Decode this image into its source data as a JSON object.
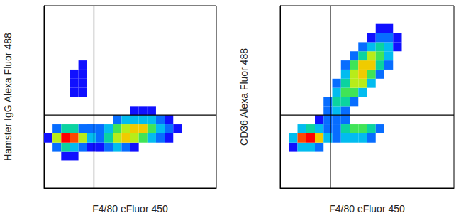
{
  "chart_data": [
    {
      "type": "heatmap",
      "x_label": "F4/80 eFluor 450",
      "y_label": "Hamster IgG Alexa Fluor 488",
      "xlim": [
        0,
        100
      ],
      "ylim": [
        0,
        100
      ],
      "tick_labels": false,
      "cell_size": 5,
      "gate": {
        "x": 29,
        "y": 40
      },
      "cells": [
        [
          10,
          15,
          1
        ],
        [
          15,
          15,
          1
        ],
        [
          5,
          20,
          2
        ],
        [
          10,
          20,
          4
        ],
        [
          15,
          20,
          3
        ],
        [
          20,
          20,
          2
        ],
        [
          25,
          20,
          1
        ],
        [
          30,
          20,
          1
        ],
        [
          35,
          20,
          2
        ],
        [
          40,
          20,
          3
        ],
        [
          45,
          20,
          2
        ],
        [
          50,
          20,
          1
        ],
        [
          0,
          25,
          1
        ],
        [
          5,
          25,
          6
        ],
        [
          10,
          25,
          10
        ],
        [
          15,
          25,
          9
        ],
        [
          20,
          25,
          6
        ],
        [
          25,
          25,
          3
        ],
        [
          30,
          25,
          2
        ],
        [
          35,
          25,
          4
        ],
        [
          40,
          25,
          6
        ],
        [
          45,
          25,
          7
        ],
        [
          50,
          25,
          6
        ],
        [
          55,
          25,
          5
        ],
        [
          60,
          25,
          3
        ],
        [
          65,
          25,
          2
        ],
        [
          70,
          25,
          1
        ],
        [
          5,
          30,
          2
        ],
        [
          10,
          30,
          4
        ],
        [
          15,
          30,
          4
        ],
        [
          20,
          30,
          2
        ],
        [
          25,
          30,
          2
        ],
        [
          30,
          30,
          2
        ],
        [
          35,
          30,
          3
        ],
        [
          40,
          30,
          5
        ],
        [
          45,
          30,
          6
        ],
        [
          50,
          30,
          7
        ],
        [
          55,
          30,
          7
        ],
        [
          60,
          30,
          5
        ],
        [
          65,
          30,
          3
        ],
        [
          70,
          30,
          2
        ],
        [
          75,
          30,
          1
        ],
        [
          40,
          35,
          2
        ],
        [
          45,
          35,
          3
        ],
        [
          50,
          35,
          3
        ],
        [
          55,
          35,
          3
        ],
        [
          60,
          35,
          3
        ],
        [
          65,
          35,
          2
        ],
        [
          70,
          35,
          1
        ],
        [
          50,
          40,
          1
        ],
        [
          55,
          40,
          1
        ],
        [
          60,
          40,
          1
        ],
        [
          15,
          50,
          1
        ],
        [
          20,
          50,
          1
        ],
        [
          15,
          55,
          1
        ],
        [
          20,
          55,
          1
        ],
        [
          15,
          60,
          1
        ],
        [
          20,
          60,
          1
        ],
        [
          20,
          65,
          1
        ]
      ]
    },
    {
      "type": "heatmap",
      "x_label": "F4/80 eFluor 450",
      "y_label": "CD36 Alexa Fluor 488",
      "xlim": [
        0,
        100
      ],
      "ylim": [
        0,
        100
      ],
      "tick_labels": false,
      "cell_size": 5,
      "gate": {
        "x": 29,
        "y": 40
      },
      "cells": [
        [
          5,
          20,
          1
        ],
        [
          10,
          20,
          3
        ],
        [
          15,
          20,
          3
        ],
        [
          20,
          20,
          2
        ],
        [
          5,
          25,
          3
        ],
        [
          10,
          25,
          9
        ],
        [
          15,
          25,
          10
        ],
        [
          20,
          25,
          7
        ],
        [
          25,
          25,
          3
        ],
        [
          30,
          25,
          2
        ],
        [
          35,
          25,
          3
        ],
        [
          40,
          25,
          3
        ],
        [
          45,
          25,
          3
        ],
        [
          50,
          25,
          2
        ],
        [
          10,
          30,
          3
        ],
        [
          15,
          30,
          4
        ],
        [
          20,
          30,
          3
        ],
        [
          25,
          30,
          2
        ],
        [
          30,
          30,
          2
        ],
        [
          35,
          30,
          4
        ],
        [
          40,
          30,
          5
        ],
        [
          45,
          30,
          5
        ],
        [
          50,
          30,
          4
        ],
        [
          55,
          30,
          2
        ],
        [
          20,
          35,
          1
        ],
        [
          25,
          35,
          2
        ],
        [
          30,
          35,
          2
        ],
        [
          35,
          35,
          2
        ],
        [
          25,
          40,
          2
        ],
        [
          30,
          40,
          3
        ],
        [
          35,
          40,
          2
        ],
        [
          25,
          45,
          2
        ],
        [
          30,
          45,
          4
        ],
        [
          35,
          45,
          4
        ],
        [
          40,
          45,
          2
        ],
        [
          30,
          50,
          3
        ],
        [
          35,
          50,
          5
        ],
        [
          40,
          50,
          5
        ],
        [
          45,
          50,
          3
        ],
        [
          30,
          55,
          2
        ],
        [
          35,
          55,
          4
        ],
        [
          40,
          55,
          6
        ],
        [
          45,
          55,
          6
        ],
        [
          50,
          55,
          3
        ],
        [
          35,
          60,
          3
        ],
        [
          40,
          60,
          6
        ],
        [
          45,
          60,
          7
        ],
        [
          50,
          60,
          5
        ],
        [
          55,
          60,
          2
        ],
        [
          35,
          65,
          2
        ],
        [
          40,
          65,
          5
        ],
        [
          45,
          65,
          7
        ],
        [
          50,
          65,
          7
        ],
        [
          55,
          65,
          4
        ],
        [
          60,
          65,
          2
        ],
        [
          40,
          70,
          2
        ],
        [
          45,
          70,
          4
        ],
        [
          50,
          70,
          6
        ],
        [
          55,
          70,
          5
        ],
        [
          60,
          70,
          3
        ],
        [
          45,
          75,
          2
        ],
        [
          50,
          75,
          3
        ],
        [
          55,
          75,
          4
        ],
        [
          60,
          75,
          3
        ],
        [
          65,
          75,
          1
        ],
        [
          50,
          80,
          1
        ],
        [
          55,
          80,
          2
        ],
        [
          60,
          80,
          2
        ],
        [
          65,
          80,
          1
        ],
        [
          55,
          85,
          1
        ],
        [
          60,
          85,
          1
        ]
      ]
    }
  ]
}
